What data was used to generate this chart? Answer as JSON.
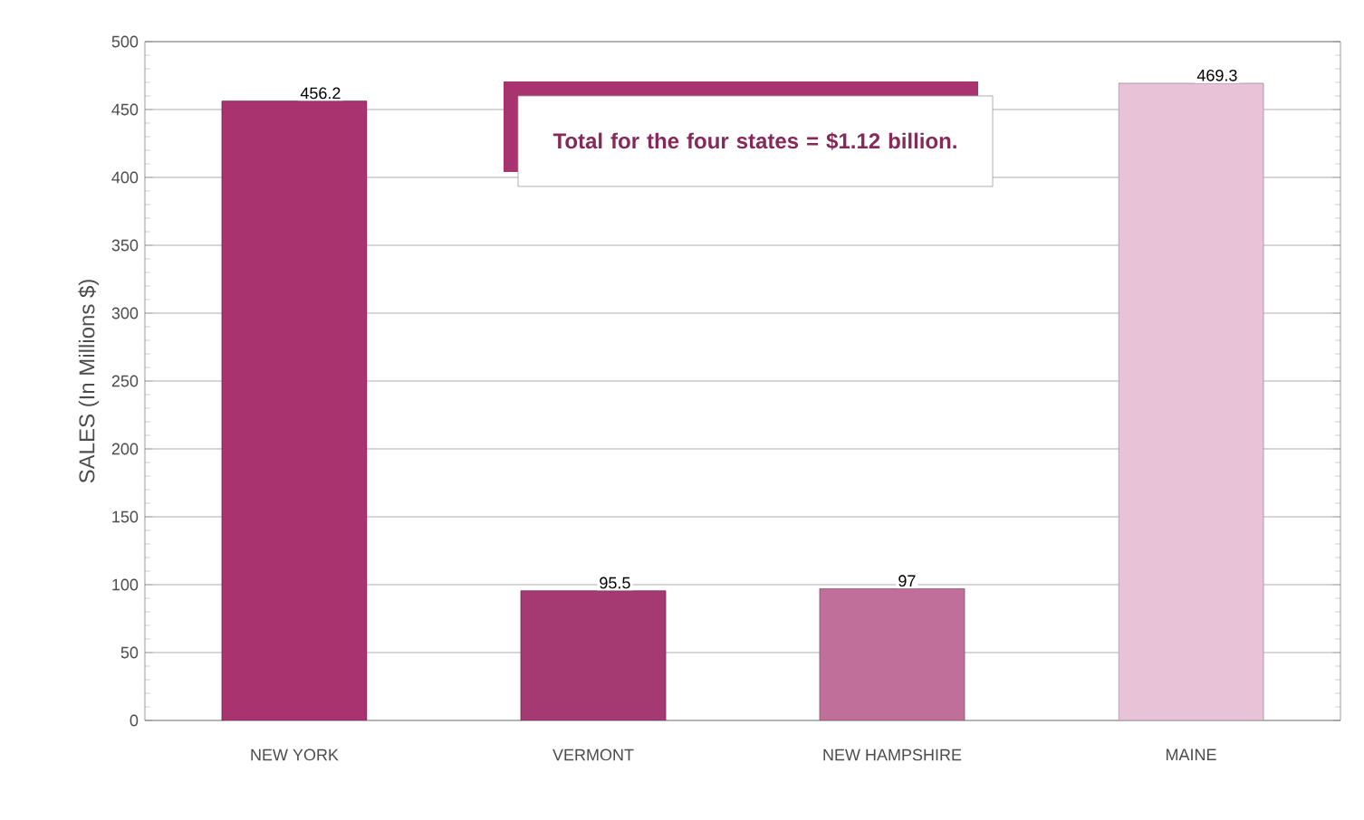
{
  "chart_data": {
    "type": "bar",
    "ylabel": "SALES (In Millions $)",
    "categories": [
      "NEW YORK",
      "VERMONT",
      "NEW HAMPSHIRE",
      "MAINE"
    ],
    "values": [
      456.2,
      95.5,
      97,
      469.3
    ],
    "colors": [
      "#a8336f",
      "#a53a72",
      "#c06f9a",
      "#e8c2d6"
    ],
    "ylim": [
      0,
      500
    ],
    "yticks": [
      0,
      50,
      100,
      150,
      200,
      250,
      300,
      350,
      400,
      450,
      500
    ],
    "grid": "y",
    "data_labels": true,
    "annotations": [
      "Total for the four states = $1.12 billion."
    ]
  }
}
